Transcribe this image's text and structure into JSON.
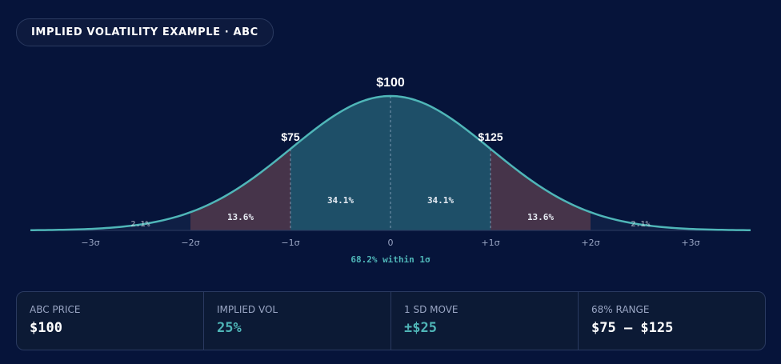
{
  "header": {
    "title": "IMPLIED VOLATILITY EXAMPLE · ABC"
  },
  "chart_data": {
    "type": "area",
    "title": "",
    "xlabel": "68.2% within 1σ",
    "x_ticks": [
      -3,
      -2,
      -1,
      0,
      1,
      2,
      3
    ],
    "x_tick_labels": [
      "−3σ",
      "−2σ",
      "−1σ",
      "0",
      "+1σ",
      "+2σ",
      "+3σ"
    ],
    "xlim": [
      -3.6,
      3.6
    ],
    "curve": "normal distribution",
    "price_labels": [
      {
        "x": -1,
        "text": "$75"
      },
      {
        "x": 0,
        "text": "$100"
      },
      {
        "x": 1,
        "text": "$125"
      }
    ],
    "regions": [
      {
        "from": -3,
        "to": -2,
        "label": "2.1%",
        "color": "#0f1f45"
      },
      {
        "from": -2,
        "to": -1,
        "label": "13.6%",
        "color": "#46344a"
      },
      {
        "from": -1,
        "to": 0,
        "label": "34.1%",
        "color": "#1e4f68"
      },
      {
        "from": 0,
        "to": 1,
        "label": "34.1%",
        "color": "#1e4f68"
      },
      {
        "from": 1,
        "to": 2,
        "label": "13.6%",
        "color": "#46344a"
      },
      {
        "from": 2,
        "to": 3,
        "label": "2.1%",
        "color": "#0f1f45"
      }
    ],
    "colors": {
      "line": "#4fb6b8",
      "background": "#06143a",
      "accent": "#4fb6b8"
    }
  },
  "stats": [
    {
      "label": "ABC PRICE",
      "value": "$100",
      "color": "#ffffff"
    },
    {
      "label": "IMPLIED VOL",
      "value": "25%",
      "color": "#4fb6b8"
    },
    {
      "label": "1 SD MOVE",
      "value": "±$25",
      "color": "#4fb6b8"
    },
    {
      "label": "68% RANGE",
      "value": "$75 – $125",
      "color": "#ffffff"
    }
  ]
}
